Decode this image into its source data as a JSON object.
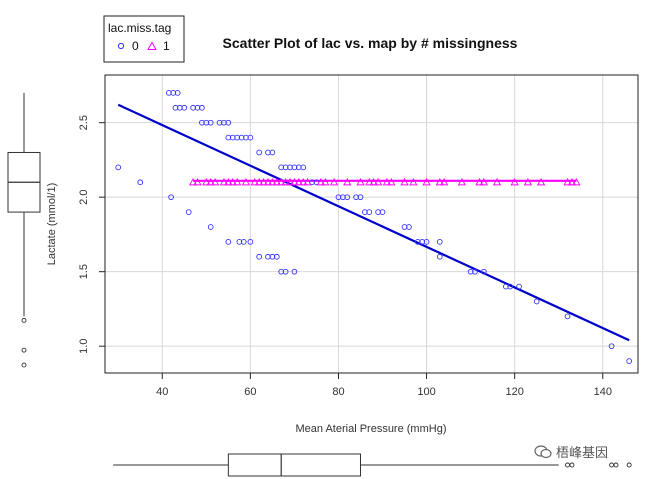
{
  "chart_data": {
    "type": "scatter",
    "title": "Scatter Plot of lac vs. map by # missingness",
    "xlabel": "Mean Aterial Pressure (mmHg)",
    "ylabel": "Lactate (mmol/1)",
    "xlim": [
      27,
      148
    ],
    "ylim": [
      0.82,
      2.82
    ],
    "xticks": [
      40,
      60,
      80,
      100,
      120,
      140
    ],
    "yticks": [
      1.0,
      1.5,
      2.0,
      2.5
    ],
    "ytick_labels": [
      "1.0",
      "1.5",
      "2.0",
      "2.5"
    ],
    "grid": true,
    "legend": {
      "title": "lac.miss.tag",
      "placement": "top-left",
      "entries": [
        {
          "label": "0",
          "marker": "circle",
          "color": "#3333ff"
        },
        {
          "label": "1",
          "marker": "triangle",
          "color": "#ff00ff"
        }
      ]
    },
    "series": [
      {
        "name": "0",
        "marker": "circle",
        "color": "#3333ff",
        "points": [
          [
            30,
            2.2
          ],
          [
            35,
            2.1
          ],
          [
            41.5,
            2.7
          ],
          [
            42.5,
            2.7
          ],
          [
            43.5,
            2.7
          ],
          [
            43,
            2.6
          ],
          [
            44,
            2.6
          ],
          [
            45,
            2.6
          ],
          [
            47,
            2.6
          ],
          [
            48,
            2.6
          ],
          [
            49,
            2.6
          ],
          [
            49,
            2.5
          ],
          [
            50,
            2.5
          ],
          [
            51,
            2.5
          ],
          [
            53,
            2.5
          ],
          [
            54,
            2.5
          ],
          [
            55,
            2.5
          ],
          [
            55,
            2.4
          ],
          [
            56,
            2.4
          ],
          [
            57,
            2.4
          ],
          [
            58,
            2.4
          ],
          [
            59,
            2.4
          ],
          [
            60,
            2.4
          ],
          [
            62,
            2.3
          ],
          [
            64,
            2.3
          ],
          [
            65,
            2.3
          ],
          [
            67,
            2.2
          ],
          [
            68,
            2.2
          ],
          [
            69,
            2.2
          ],
          [
            70,
            2.2
          ],
          [
            71,
            2.2
          ],
          [
            72,
            2.2
          ],
          [
            74,
            2.1
          ],
          [
            75,
            2.1
          ],
          [
            80,
            2.0
          ],
          [
            81,
            2.0
          ],
          [
            82,
            2.0
          ],
          [
            84,
            2.0
          ],
          [
            85,
            2.0
          ],
          [
            86,
            1.9
          ],
          [
            87,
            1.9
          ],
          [
            89,
            1.9
          ],
          [
            90,
            1.9
          ],
          [
            95,
            1.8
          ],
          [
            96,
            1.8
          ],
          [
            98,
            1.7
          ],
          [
            99,
            1.7
          ],
          [
            100,
            1.7
          ],
          [
            103,
            1.7
          ],
          [
            103,
            1.6
          ],
          [
            110,
            1.5
          ],
          [
            111,
            1.5
          ],
          [
            113,
            1.5
          ],
          [
            118,
            1.4
          ],
          [
            119,
            1.4
          ],
          [
            121,
            1.4
          ],
          [
            125,
            1.3
          ],
          [
            132,
            1.2
          ],
          [
            142,
            1.0
          ],
          [
            146,
            0.9
          ],
          [
            42,
            2.0
          ],
          [
            46,
            1.9
          ],
          [
            51,
            1.8
          ],
          [
            55,
            1.7
          ],
          [
            57.5,
            1.7
          ],
          [
            58.5,
            1.7
          ],
          [
            60,
            1.7
          ],
          [
            62,
            1.6
          ],
          [
            64,
            1.6
          ],
          [
            65,
            1.6
          ],
          [
            66,
            1.6
          ],
          [
            67,
            1.5
          ],
          [
            68,
            1.5
          ],
          [
            70,
            1.5
          ]
        ]
      },
      {
        "name": "1",
        "marker": "triangle",
        "color": "#ff00ff",
        "points": [
          [
            47,
            2.1
          ],
          [
            48,
            2.1
          ],
          [
            50,
            2.1
          ],
          [
            51,
            2.1
          ],
          [
            52,
            2.1
          ],
          [
            54,
            2.1
          ],
          [
            55,
            2.1
          ],
          [
            56,
            2.1
          ],
          [
            57,
            2.1
          ],
          [
            59,
            2.1
          ],
          [
            61,
            2.1
          ],
          [
            62,
            2.1
          ],
          [
            63,
            2.1
          ],
          [
            64,
            2.1
          ],
          [
            65,
            2.1
          ],
          [
            66,
            2.1
          ],
          [
            67,
            2.1
          ],
          [
            68,
            2.1
          ],
          [
            69,
            2.1
          ],
          [
            70,
            2.1
          ],
          [
            71,
            2.1
          ],
          [
            72,
            2.1
          ],
          [
            73,
            2.1
          ],
          [
            76,
            2.1
          ],
          [
            77,
            2.1
          ],
          [
            79,
            2.1
          ],
          [
            82,
            2.1
          ],
          [
            85,
            2.1
          ],
          [
            87,
            2.1
          ],
          [
            88,
            2.1
          ],
          [
            89,
            2.1
          ],
          [
            91,
            2.1
          ],
          [
            92,
            2.1
          ],
          [
            95,
            2.1
          ],
          [
            97,
            2.1
          ],
          [
            100,
            2.1
          ],
          [
            103,
            2.1
          ],
          [
            104,
            2.1
          ],
          [
            108,
            2.1
          ],
          [
            112,
            2.1
          ],
          [
            113,
            2.1
          ],
          [
            116,
            2.1
          ],
          [
            120,
            2.1
          ],
          [
            123,
            2.1
          ],
          [
            126,
            2.1
          ],
          [
            132,
            2.1
          ],
          [
            133,
            2.1
          ],
          [
            134,
            2.1
          ]
        ]
      }
    ],
    "fit_lines": [
      {
        "series": "0",
        "color": "#0000cc",
        "x": [
          30,
          146
        ],
        "y": [
          2.62,
          1.04
        ]
      },
      {
        "series": "1",
        "color": "#ff00ff",
        "x": [
          47,
          134
        ],
        "y": [
          2.11,
          2.11
        ]
      }
    ],
    "y_boxplot": {
      "whisker_low": 1.2,
      "q1": 1.9,
      "median": 2.1,
      "q3": 2.3,
      "whisker_high": 2.7,
      "outliers": [
        1.2,
        1.0,
        0.9
      ]
    },
    "x_boxplot": {
      "whisker_low": 30,
      "q1": 55,
      "median": 67,
      "q3": 85,
      "whisker_high": 130,
      "outliers": [
        132,
        133,
        142,
        143,
        146
      ]
    }
  },
  "watermark": {
    "text": "梧峰基因",
    "icon": "wechat-icon"
  }
}
